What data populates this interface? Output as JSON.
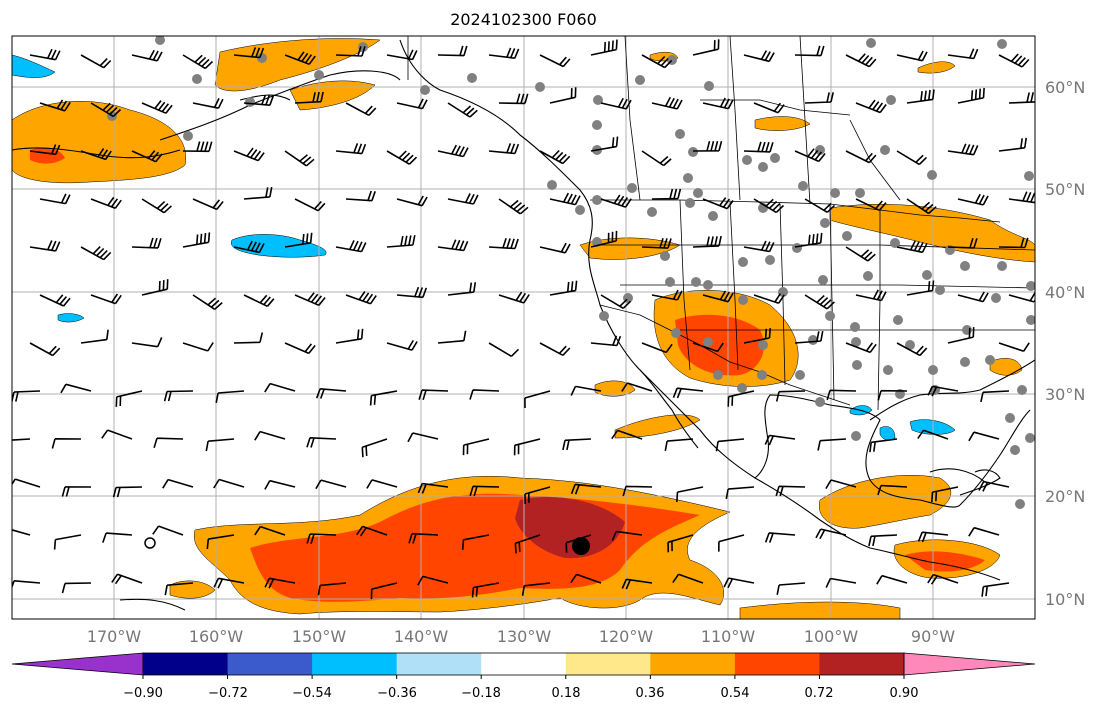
{
  "title": "2024102300 F060",
  "lat_labels": [
    "60°N",
    "50°N",
    "40°N",
    "30°N",
    "20°N",
    "10°N"
  ],
  "lon_labels": [
    "170°W",
    "160°W",
    "150°W",
    "140°W",
    "130°W",
    "120°W",
    "110°W",
    "100°W",
    "90°W"
  ],
  "colorbar": {
    "ticks": [
      "−0.90",
      "−0.72",
      "−0.54",
      "−0.36",
      "−0.18",
      "0.18",
      "0.36",
      "0.54",
      "0.72",
      "0.90"
    ],
    "colors": [
      "#9932cc",
      "#00008b",
      "#3b5bcc",
      "#00bfff",
      "#b0e0f8",
      "#ffffff",
      "#ffe88a",
      "#ffa500",
      "#ff4500",
      "#b22222",
      "#ff88bb"
    ]
  },
  "legend_colors": {
    "land_outline": "#000000",
    "grid": "#b0b0b0",
    "station_dot": "#808080"
  }
}
